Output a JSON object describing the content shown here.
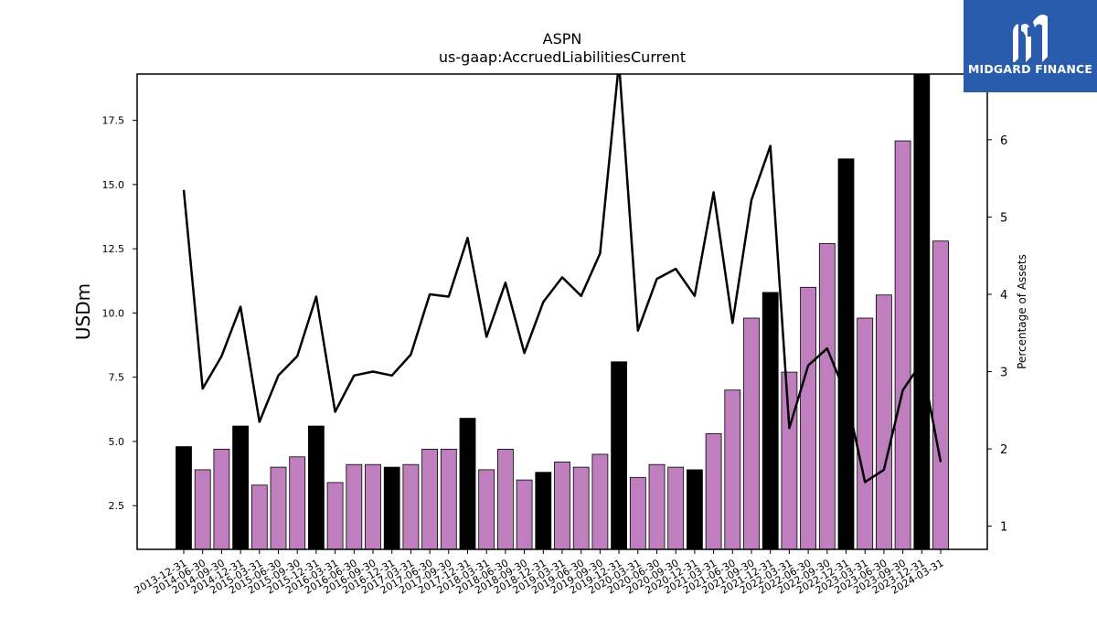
{
  "brand": {
    "name": "MIDGARD FINANCE",
    "color": "#2a5cad",
    "icon": "midgard-logo-icon"
  },
  "chart_data": {
    "type": "bar",
    "title": "ASPN",
    "subtitle": "us-gaap:AccruedLiabilitiesCurrent",
    "ylabel": "USDm",
    "y2label": "Percentage of Assets",
    "ylim": [
      0.8,
      19.3
    ],
    "y2lim": [
      0.7,
      6.85
    ],
    "yticks": [
      2.5,
      5.0,
      7.5,
      10.0,
      12.5,
      15.0,
      17.5
    ],
    "y2ticks": [
      1,
      2,
      3,
      4,
      5,
      6
    ],
    "colors": {
      "bar": "#bf7fbf",
      "bar_year_end": "#000000",
      "line": "#000000"
    },
    "categories": [
      "2013-12-31",
      "2014-06-30",
      "2014-09-30",
      "2014-12-31",
      "2015-03-31",
      "2015-06-30",
      "2015-09-30",
      "2015-12-31",
      "2016-03-31",
      "2016-06-30",
      "2016-09-30",
      "2016-12-31",
      "2017-03-31",
      "2017-06-30",
      "2017-09-30",
      "2017-12-31",
      "2018-03-31",
      "2018-06-30",
      "2018-09-30",
      "2018-12-31",
      "2019-03-31",
      "2019-06-30",
      "2019-09-30",
      "2019-12-31",
      "2020-03-31",
      "2020-06-30",
      "2020-09-30",
      "2020-12-31",
      "2021-03-31",
      "2021-06-30",
      "2021-09-30",
      "2021-12-31",
      "2022-03-31",
      "2022-06-30",
      "2022-09-30",
      "2022-12-31",
      "2023-03-31",
      "2023-06-30",
      "2023-09-30",
      "2023-12-31",
      "2024-03-31"
    ],
    "series": [
      {
        "kind": "bar",
        "values": [
          4.8,
          3.9,
          4.7,
          5.6,
          3.3,
          4.0,
          4.4,
          5.6,
          3.4,
          4.1,
          4.1,
          4.0,
          4.1,
          4.7,
          4.7,
          5.9,
          3.9,
          4.7,
          3.5,
          3.8,
          4.2,
          4.0,
          4.5,
          8.1,
          3.6,
          4.1,
          4.0,
          3.9,
          5.3,
          7.0,
          9.8,
          10.8,
          7.7,
          11.0,
          12.7,
          16.0,
          9.8,
          10.7,
          16.7,
          19.5,
          12.8
        ],
        "year_end": [
          true,
          false,
          false,
          true,
          false,
          false,
          false,
          true,
          false,
          false,
          false,
          true,
          false,
          false,
          false,
          true,
          false,
          false,
          false,
          true,
          false,
          false,
          false,
          true,
          false,
          false,
          false,
          true,
          false,
          false,
          false,
          true,
          false,
          false,
          false,
          true,
          false,
          false,
          false,
          true,
          false
        ]
      },
      {
        "kind": "line",
        "axis": "right",
        "values": [
          5.35,
          2.78,
          3.2,
          3.84,
          2.35,
          2.95,
          3.2,
          3.97,
          2.48,
          2.95,
          3.0,
          2.95,
          3.22,
          4.0,
          3.97,
          4.73,
          3.45,
          4.15,
          3.24,
          3.9,
          4.22,
          3.98,
          4.53,
          7.0,
          3.53,
          4.2,
          4.33,
          3.98,
          5.32,
          3.63,
          5.22,
          5.92,
          2.27,
          3.08,
          3.3,
          2.7,
          1.57,
          1.73,
          2.76,
          3.12,
          1.83
        ]
      }
    ]
  }
}
